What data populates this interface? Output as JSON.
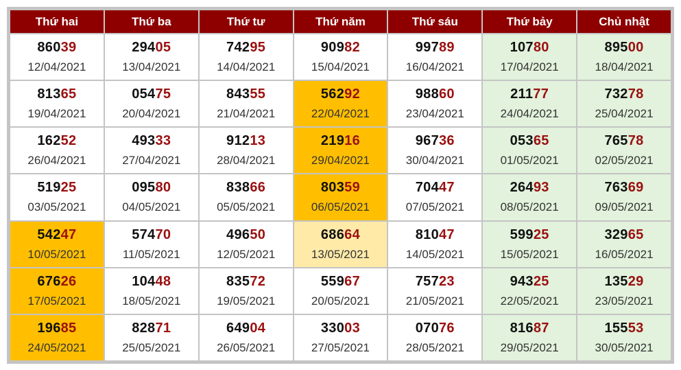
{
  "headers": [
    "Thứ hai",
    "Thứ ba",
    "Thứ tư",
    "Thứ năm",
    "Thứ sáu",
    "Thứ bảy",
    "Chủ nhật"
  ],
  "rows": [
    [
      {
        "head": "860",
        "tail": "39",
        "date": "12/04/2021"
      },
      {
        "head": "294",
        "tail": "05",
        "date": "13/04/2021"
      },
      {
        "head": "742",
        "tail": "95",
        "date": "14/04/2021"
      },
      {
        "head": "909",
        "tail": "82",
        "date": "15/04/2021"
      },
      {
        "head": "997",
        "tail": "89",
        "date": "16/04/2021"
      },
      {
        "head": "107",
        "tail": "80",
        "date": "17/04/2021"
      },
      {
        "head": "895",
        "tail": "00",
        "date": "18/04/2021"
      }
    ],
    [
      {
        "head": "813",
        "tail": "65",
        "date": "19/04/2021"
      },
      {
        "head": "054",
        "tail": "75",
        "date": "20/04/2021"
      },
      {
        "head": "843",
        "tail": "55",
        "date": "21/04/2021"
      },
      {
        "head": "562",
        "tail": "92",
        "date": "22/04/2021",
        "highlight": "strong"
      },
      {
        "head": "988",
        "tail": "60",
        "date": "23/04/2021"
      },
      {
        "head": "211",
        "tail": "77",
        "date": "24/04/2021"
      },
      {
        "head": "732",
        "tail": "78",
        "date": "25/04/2021"
      }
    ],
    [
      {
        "head": "162",
        "tail": "52",
        "date": "26/04/2021"
      },
      {
        "head": "493",
        "tail": "33",
        "date": "27/04/2021"
      },
      {
        "head": "912",
        "tail": "13",
        "date": "28/04/2021"
      },
      {
        "head": "219",
        "tail": "16",
        "date": "29/04/2021",
        "highlight": "strong"
      },
      {
        "head": "967",
        "tail": "36",
        "date": "30/04/2021"
      },
      {
        "head": "053",
        "tail": "65",
        "date": "01/05/2021"
      },
      {
        "head": "765",
        "tail": "78",
        "date": "02/05/2021"
      }
    ],
    [
      {
        "head": "519",
        "tail": "25",
        "date": "03/05/2021"
      },
      {
        "head": "095",
        "tail": "80",
        "date": "04/05/2021"
      },
      {
        "head": "838",
        "tail": "66",
        "date": "05/05/2021"
      },
      {
        "head": "803",
        "tail": "59",
        "date": "06/05/2021",
        "highlight": "strong"
      },
      {
        "head": "704",
        "tail": "47",
        "date": "07/05/2021"
      },
      {
        "head": "264",
        "tail": "93",
        "date": "08/05/2021"
      },
      {
        "head": "763",
        "tail": "69",
        "date": "09/05/2021"
      }
    ],
    [
      {
        "head": "542",
        "tail": "47",
        "date": "10/05/2021",
        "highlight": "strong"
      },
      {
        "head": "574",
        "tail": "70",
        "date": "11/05/2021"
      },
      {
        "head": "496",
        "tail": "50",
        "date": "12/05/2021"
      },
      {
        "head": "686",
        "tail": "64",
        "date": "13/05/2021",
        "highlight": "light"
      },
      {
        "head": "810",
        "tail": "47",
        "date": "14/05/2021"
      },
      {
        "head": "599",
        "tail": "25",
        "date": "15/05/2021"
      },
      {
        "head": "329",
        "tail": "65",
        "date": "16/05/2021"
      }
    ],
    [
      {
        "head": "676",
        "tail": "26",
        "date": "17/05/2021",
        "highlight": "strong"
      },
      {
        "head": "104",
        "tail": "48",
        "date": "18/05/2021"
      },
      {
        "head": "835",
        "tail": "72",
        "date": "19/05/2021"
      },
      {
        "head": "559",
        "tail": "67",
        "date": "20/05/2021"
      },
      {
        "head": "757",
        "tail": "23",
        "date": "21/05/2021"
      },
      {
        "head": "943",
        "tail": "25",
        "date": "22/05/2021"
      },
      {
        "head": "135",
        "tail": "29",
        "date": "23/05/2021"
      }
    ],
    [
      {
        "head": "196",
        "tail": "85",
        "date": "24/05/2021",
        "highlight": "strong"
      },
      {
        "head": "828",
        "tail": "71",
        "date": "25/05/2021"
      },
      {
        "head": "649",
        "tail": "04",
        "date": "26/05/2021"
      },
      {
        "head": "330",
        "tail": "03",
        "date": "27/05/2021"
      },
      {
        "head": "070",
        "tail": "76",
        "date": "28/05/2021"
      },
      {
        "head": "816",
        "tail": "87",
        "date": "29/05/2021"
      },
      {
        "head": "155",
        "tail": "53",
        "date": "30/05/2021"
      }
    ]
  ],
  "colors": {
    "header_bg": "#8e0000",
    "header_text": "#ffffff",
    "tail_digits": "#9b1010",
    "weekend_bg": "#e2f2dc",
    "highlight_strong": "#ffbf00",
    "highlight_light": "#ffeaa8"
  }
}
